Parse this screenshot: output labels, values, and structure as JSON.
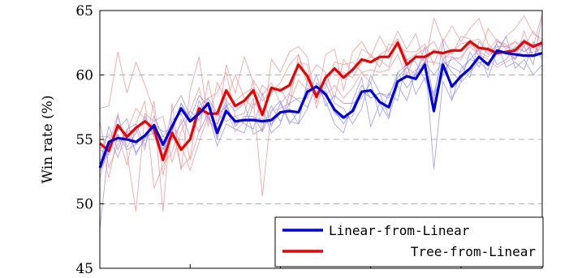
{
  "chart_data": {
    "type": "line",
    "title": "",
    "xlabel": "",
    "ylabel": "Win rate (%)",
    "ylim": [
      45,
      65
    ],
    "xlim": [
      0,
      49
    ],
    "yticks": [
      45,
      50,
      55,
      60,
      65
    ],
    "grid": "horizontal dashed",
    "legend_position": "bottom-right",
    "colors": {
      "blue": "#0000dd",
      "red": "#ee0000",
      "blue_faint": "#8888ee",
      "red_faint": "#f08a8a"
    },
    "series": [
      {
        "name": "Linear-from-Linear",
        "color": "#0000dd",
        "values": [
          52.8,
          54.8,
          55.1,
          55.0,
          54.8,
          55.3,
          56.1,
          54.6,
          56.0,
          57.4,
          56.4,
          57.0,
          57.8,
          55.5,
          57.2,
          56.4,
          56.5,
          56.5,
          56.4,
          56.5,
          57.1,
          57.2,
          57.1,
          58.7,
          59.1,
          58.5,
          57.3,
          56.7,
          57.2,
          58.7,
          58.8,
          57.9,
          57.5,
          59.5,
          59.9,
          59.7,
          60.8,
          57.2,
          60.8,
          59.1,
          59.9,
          60.5,
          61.4,
          60.8,
          61.9,
          61.7,
          61.6,
          61.5,
          61.5,
          61.7
        ]
      },
      {
        "name": "Tree-from-Linear",
        "color": "#ee0000",
        "values": [
          54.7,
          54.1,
          56.1,
          55.2,
          55.9,
          56.4,
          55.8,
          53.4,
          55.5,
          54.2,
          55.0,
          57.4,
          57.0,
          57.0,
          58.8,
          57.6,
          58.0,
          58.8,
          56.9,
          59.0,
          58.8,
          59.2,
          60.8,
          59.9,
          58.3,
          59.8,
          60.5,
          59.8,
          60.4,
          61.2,
          61.0,
          61.4,
          61.4,
          62.5,
          60.8,
          61.4,
          61.4,
          61.8,
          61.7,
          61.9,
          61.9,
          62.6,
          62.1,
          62.0,
          61.7,
          61.8,
          61.9,
          62.6,
          62.2,
          62.5
        ]
      }
    ],
    "faint_series": {
      "blue": [
        [
          48.0,
          54.5,
          55.8,
          56.6,
          53.8,
          55.2,
          55.5,
          54.2,
          57.2,
          58.4,
          56.8,
          55.6,
          57.0,
          54.5,
          56.2,
          55.8,
          55.5,
          57.8,
          57.4,
          55.5,
          56.2,
          58.5,
          58.0,
          57.5,
          59.2,
          58.0,
          56.2,
          55.5,
          58.0,
          59.8,
          56.0,
          57.8,
          56.6,
          59.2,
          58.0,
          60.3,
          61.5,
          52.7,
          59.5,
          58.0,
          60.5,
          61.2,
          62.0,
          59.8,
          61.8,
          63.0,
          60.5,
          61.2,
          60.0,
          60.8
        ],
        [
          53.0,
          56.0,
          54.2,
          55.8,
          56.2,
          54.5,
          56.8,
          55.2,
          55.0,
          56.2,
          57.2,
          56.5,
          58.2,
          57.0,
          56.4,
          56.8,
          56.2,
          55.8,
          58.6,
          56.0,
          57.8,
          56.4,
          56.2,
          59.6,
          58.6,
          59.4,
          57.8,
          57.4,
          56.2,
          57.4,
          60.0,
          58.6,
          56.8,
          60.2,
          60.8,
          58.5,
          59.8,
          58.6,
          61.2,
          60.2,
          59.5,
          61.8,
          60.6,
          62.2,
          60.8,
          61.2,
          62.2,
          61.8,
          62.4,
          62.2
        ],
        [
          54.2,
          53.8,
          56.8,
          54.4,
          55.5,
          56.8,
          55.2,
          53.8,
          56.5,
          57.0,
          55.2,
          58.0,
          56.6,
          56.2,
          58.0,
          57.2,
          57.8,
          55.4,
          55.8,
          57.6,
          56.4,
          57.8,
          58.2,
          58.2,
          60.0,
          57.6,
          58.4,
          57.8,
          57.8,
          58.2,
          59.4,
          56.8,
          58.6,
          58.0,
          61.2,
          61.0,
          59.6,
          58.4,
          60.0,
          61.4,
          60.8,
          59.8,
          62.6,
          61.6,
          62.4,
          60.6,
          61.0,
          60.4,
          62.6,
          61.2
        ],
        [
          55.2,
          55.2,
          53.6,
          55.6,
          54.0,
          55.0,
          56.2,
          55.6,
          55.8,
          57.8,
          56.6,
          58.4,
          57.6,
          55.0,
          57.8,
          56.0,
          56.8,
          56.8,
          55.6,
          57.2,
          58.0,
          56.2,
          57.2,
          59.0,
          58.4,
          58.8,
          57.2,
          56.2,
          57.4,
          59.2,
          58.2,
          58.6,
          58.2,
          60.2,
          59.0,
          60.0,
          62.2,
          58.0,
          62.6,
          58.2,
          59.4,
          60.2,
          61.0,
          60.4,
          62.6,
          62.2,
          62.0,
          62.8,
          61.4,
          62.4
        ],
        [
          52.5,
          54.2,
          55.4,
          54.2,
          54.6,
          55.4,
          56.0,
          54.2,
          55.6,
          57.8,
          56.4,
          57.4,
          57.8,
          56.8,
          57.6,
          56.2,
          56.6,
          56.6,
          56.6,
          56.2,
          57.0,
          57.4,
          56.2,
          57.4,
          59.4,
          58.6,
          57.0,
          56.6,
          56.8,
          58.8,
          58.2,
          58.6,
          58.4,
          59.8,
          60.6,
          60.0,
          61.0,
          60.0,
          61.0,
          60.6,
          60.2,
          61.2,
          61.0,
          61.0,
          61.6,
          61.8,
          61.2,
          62.2,
          60.8,
          64.6
        ]
      ],
      "red": [
        [
          57.4,
          57.6,
          61.8,
          58.6,
          61.0,
          59.2,
          57.2,
          49.4,
          57.8,
          52.6,
          58.8,
          61.4,
          56.4,
          55.8,
          60.8,
          58.6,
          61.4,
          59.4,
          55.6,
          61.2,
          60.2,
          61.8,
          62.2,
          61.4,
          57.8,
          61.6,
          62.0,
          58.8,
          61.8,
          62.6,
          61.4,
          63.0,
          61.8,
          63.4,
          62.0,
          63.2,
          60.8,
          64.4,
          62.6,
          63.8,
          62.6,
          63.6,
          64.4,
          62.4,
          61.6,
          63.0,
          63.6,
          64.6,
          63.2,
          62.8
        ],
        [
          55.0,
          52.0,
          55.4,
          53.0,
          56.2,
          58.0,
          51.2,
          53.0,
          54.0,
          56.6,
          53.4,
          55.6,
          59.6,
          56.2,
          57.4,
          55.6,
          56.4,
          58.2,
          50.6,
          57.2,
          57.4,
          57.8,
          59.6,
          58.8,
          58.8,
          58.4,
          59.2,
          58.2,
          59.0,
          60.2,
          60.4,
          60.2,
          60.4,
          61.6,
          59.8,
          60.4,
          61.0,
          61.0,
          60.8,
          61.2,
          61.4,
          62.2,
          61.6,
          61.2,
          60.6,
          61.0,
          61.4,
          61.6,
          61.8,
          62.0
        ],
        [
          52.0,
          54.6,
          57.0,
          54.0,
          49.4,
          57.0,
          56.4,
          56.8,
          53.2,
          55.6,
          57.2,
          59.0,
          56.0,
          59.4,
          58.0,
          60.0,
          58.2,
          57.4,
          59.2,
          58.6,
          59.4,
          60.8,
          61.6,
          59.6,
          60.8,
          60.2,
          58.2,
          61.2,
          60.2,
          62.0,
          61.6,
          60.6,
          62.4,
          62.2,
          61.8,
          61.8,
          62.4,
          60.8,
          62.8,
          61.6,
          63.0,
          62.8,
          61.4,
          63.6,
          62.6,
          62.4,
          61.2,
          63.4,
          61.4,
          62.8
        ],
        [
          54.2,
          55.4,
          54.8,
          55.6,
          55.8,
          54.2,
          58.0,
          52.2,
          56.0,
          52.8,
          53.6,
          57.6,
          58.2,
          58.6,
          60.2,
          56.8,
          57.0,
          59.6,
          58.4,
          59.4,
          57.8,
          58.6,
          61.0,
          60.8,
          57.4,
          59.8,
          60.4,
          60.2,
          59.8,
          61.0,
          61.4,
          61.2,
          60.6,
          62.8,
          61.2,
          61.6,
          62.0,
          62.6,
          61.2,
          61.8,
          62.4,
          62.6,
          62.8,
          61.8,
          62.8,
          62.0,
          62.6,
          62.2,
          63.4,
          62.4
        ],
        [
          56.4,
          52.8,
          54.6,
          55.6,
          57.4,
          56.6,
          55.4,
          55.2,
          56.2,
          54.6,
          52.6,
          54.8,
          56.8,
          55.2,
          57.6,
          58.0,
          58.6,
          59.0,
          58.0,
          58.8,
          59.0,
          57.6,
          61.6,
          59.2,
          58.6,
          59.0,
          61.0,
          60.8,
          61.0,
          60.2,
          59.4,
          61.6,
          62.0,
          62.8,
          60.0,
          61.6,
          61.0,
          62.0,
          61.4,
          61.4,
          61.2,
          62.4,
          61.8,
          61.4,
          62.2,
          62.2,
          62.6,
          61.8,
          62.2,
          64.8
        ]
      ]
    }
  }
}
